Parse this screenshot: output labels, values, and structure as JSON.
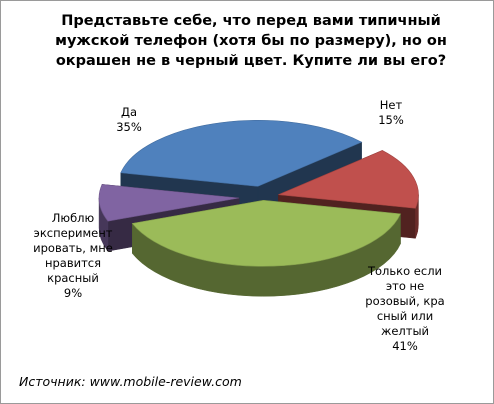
{
  "chart_data": {
    "type": "pie",
    "style": "3d-exploded",
    "title_lines": [
      "Представьте себе, что перед вами типичный",
      "мужской телефон (хотя бы по размеру),  но он",
      "окрашен не в черный цвет. Купите ли вы его?"
    ],
    "slices": [
      {
        "label_lines": [
          "Да",
          "35%"
        ],
        "value": 35,
        "color": "#4f81bd"
      },
      {
        "label_lines": [
          "Нет",
          "15%"
        ],
        "value": 15,
        "color": "#c0504d"
      },
      {
        "label_lines": [
          "Только если",
          "это не",
          "розовый, кра",
          "сный или",
          "желтый",
          "41%"
        ],
        "value": 41,
        "color": "#9bbb59"
      },
      {
        "label_lines": [
          "Люблю",
          "эксперимент",
          "ировать, мне",
          "нравится",
          "красный",
          "9%"
        ],
        "value": 9,
        "color": "#8064a2"
      }
    ],
    "legend": "none"
  },
  "source_text": "Источник: www.mobile-review.com"
}
